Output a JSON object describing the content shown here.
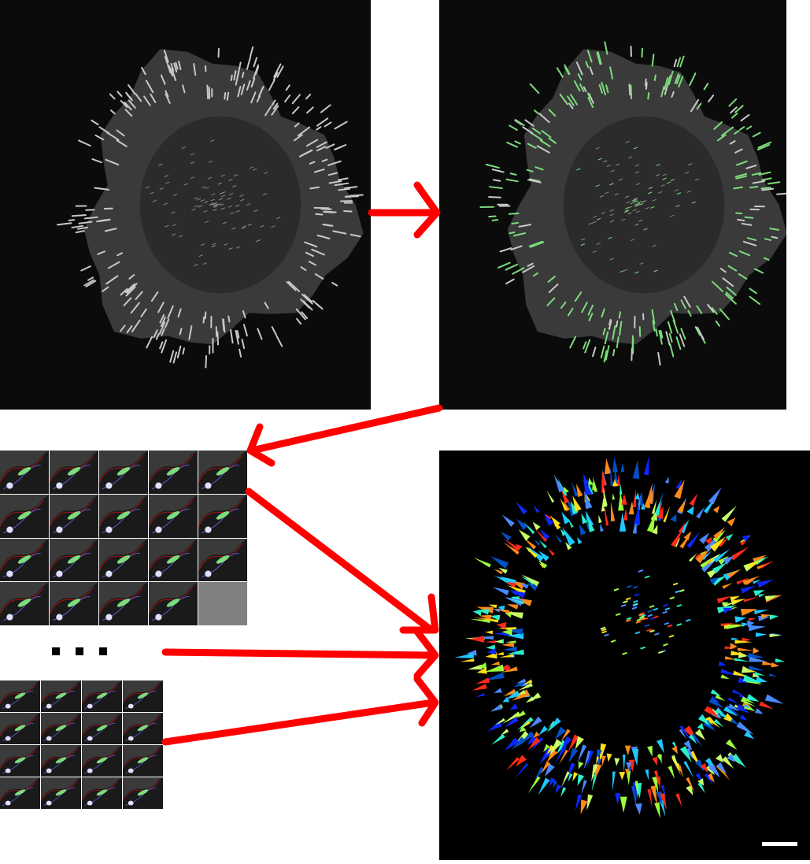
{
  "panels": {
    "raw_image": {
      "kind": "grayscale fluorescence micrograph of a cell"
    },
    "segmented_image": {
      "kind": "fluorescence micrograph with detected adhesions highlighted",
      "highlight_color": "#7ddc7d"
    },
    "tracking_grid_1": {
      "rows": 4,
      "cols": 5,
      "filled_tiles": 19
    },
    "tracking_grid_2": {
      "rows": 4,
      "cols": 4,
      "filled_tiles": 16
    },
    "labeled_result": {
      "kind": "color-coded labeled adhesions",
      "palette": [
        "#0a28ff",
        "#1ec8ff",
        "#2af0c8",
        "#ff2a1a",
        "#ff8a1a",
        "#ffe01a",
        "#9aff3a",
        "#0050c8",
        "#4a8aff",
        "#c8ff6a"
      ]
    }
  },
  "arrows": {
    "color": "#ff0000"
  },
  "ellipsis": "...",
  "scale_bar": {
    "color": "#ffffff"
  }
}
